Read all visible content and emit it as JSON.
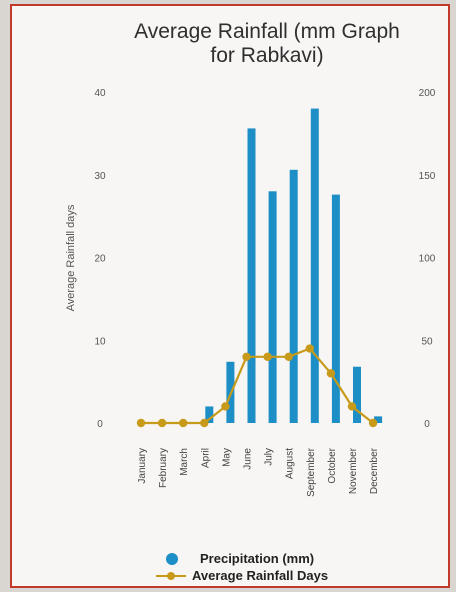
{
  "chart_data": {
    "type": "bar",
    "title_line1": "Average Rainfall (mm Graph",
    "title_line2": "for Rabkavi)",
    "ylabel_left": "Average Rainfall days",
    "categories": [
      "January",
      "February",
      "March",
      "April",
      "May",
      "June",
      "July",
      "August",
      "September",
      "October",
      "November",
      "December"
    ],
    "y_left_ticks": [
      "0",
      "10",
      "20",
      "30",
      "40"
    ],
    "y_right_ticks": [
      "0",
      "50",
      "100",
      "150",
      "200"
    ],
    "ylim_left": [
      0,
      40
    ],
    "ylim_right": [
      0,
      200
    ],
    "series": [
      {
        "name": "Precipitation (mm)",
        "kind": "bar",
        "axis": "right",
        "color": "#1e8fc6",
        "values": [
          0,
          0,
          0,
          10,
          37,
          178,
          140,
          153,
          190,
          138,
          34,
          4
        ]
      },
      {
        "name": "Average Rainfall Days",
        "kind": "line",
        "axis": "left",
        "color": "#c79a1a",
        "values": [
          0,
          0,
          0,
          0,
          2,
          8,
          8,
          8,
          9,
          6,
          2,
          0
        ]
      }
    ],
    "legend_position": "bottom",
    "grid": false
  }
}
